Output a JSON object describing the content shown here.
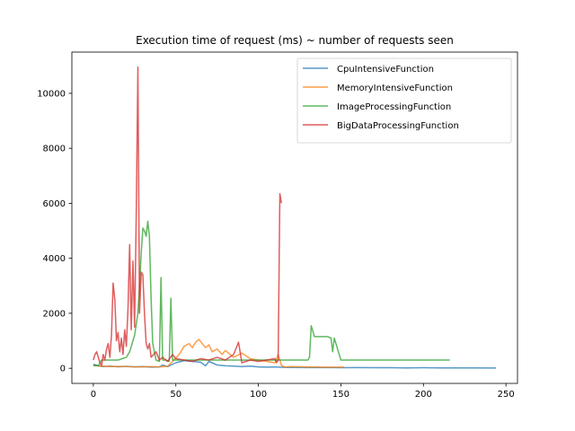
{
  "chart_data": {
    "type": "line",
    "title": "Execution time of request (ms) ~ number of requests seen",
    "xlabel": "",
    "ylabel": "",
    "xlim": [
      -13,
      257
    ],
    "ylim": [
      -550,
      11500
    ],
    "xticks": [
      0,
      50,
      100,
      150,
      200,
      250
    ],
    "yticks": [
      0,
      2000,
      4000,
      6000,
      8000,
      10000
    ],
    "grid": false,
    "legend_position": "top-right",
    "series": [
      {
        "name": "CpuIntensiveFunction",
        "color": "#1f77b4",
        "x": [
          0,
          3,
          6,
          10,
          15,
          20,
          25,
          30,
          35,
          40,
          42,
          45,
          50,
          55,
          60,
          65,
          68,
          70,
          75,
          80,
          85,
          90,
          95,
          100,
          105,
          110,
          115,
          120,
          130,
          140,
          150,
          160,
          170,
          180,
          190,
          200,
          210,
          220,
          230,
          244
        ],
        "values": [
          150,
          90,
          60,
          80,
          55,
          70,
          50,
          60,
          40,
          50,
          120,
          60,
          200,
          280,
          250,
          220,
          90,
          250,
          120,
          90,
          80,
          60,
          80,
          50,
          40,
          50,
          35,
          30,
          25,
          30,
          20,
          25,
          20,
          20,
          15,
          20,
          15,
          15,
          15,
          10
        ]
      },
      {
        "name": "MemoryIntensiveFunction",
        "color": "#ff7f0e",
        "x": [
          0,
          5,
          10,
          15,
          20,
          25,
          30,
          35,
          40,
          45,
          48,
          52,
          55,
          58,
          60,
          62,
          64,
          66,
          68,
          70,
          72,
          75,
          78,
          80,
          85,
          90,
          95,
          100,
          105,
          110,
          112,
          114,
          116,
          120,
          130,
          140,
          152
        ],
        "values": [
          100,
          80,
          60,
          70,
          60,
          55,
          50,
          60,
          50,
          70,
          250,
          500,
          800,
          900,
          750,
          950,
          1050,
          900,
          750,
          850,
          600,
          700,
          500,
          650,
          400,
          550,
          350,
          300,
          250,
          200,
          500,
          100,
          50,
          60,
          50,
          40,
          40
        ]
      },
      {
        "name": "ImageProcessingFunction",
        "color": "#2ca02c",
        "x": [
          0,
          3,
          5,
          10,
          15,
          20,
          22,
          25,
          27,
          28,
          29,
          30,
          31,
          32,
          33,
          34,
          35,
          36,
          38,
          40,
          41,
          42,
          44,
          46,
          47,
          48,
          50,
          55,
          60,
          70,
          80,
          90,
          100,
          110,
          115,
          120,
          125,
          130,
          131,
          132,
          134,
          136,
          138,
          140,
          142,
          144,
          145,
          146,
          150,
          160,
          180,
          200,
          216
        ],
        "values": [
          100,
          90,
          300,
          300,
          300,
          400,
          600,
          1200,
          2000,
          3000,
          4200,
          5100,
          5000,
          4800,
          5350,
          4800,
          2500,
          900,
          300,
          250,
          3300,
          300,
          300,
          250,
          2550,
          300,
          300,
          300,
          300,
          300,
          300,
          300,
          300,
          300,
          300,
          300,
          300,
          300,
          400,
          1550,
          1150,
          1150,
          1150,
          1150,
          1150,
          1100,
          600,
          1100,
          300,
          300,
          300,
          300,
          300
        ]
      },
      {
        "name": "BigDataProcessingFunction",
        "color": "#d62728",
        "x": [
          0,
          1,
          2,
          3,
          4,
          5,
          6,
          7,
          8,
          9,
          10,
          11,
          12,
          13,
          14,
          15,
          16,
          17,
          18,
          19,
          20,
          21,
          22,
          23,
          24,
          25,
          26,
          27,
          28,
          29,
          30,
          31,
          32,
          33,
          34,
          35,
          38,
          40,
          42,
          45,
          48,
          50,
          55,
          60,
          65,
          70,
          75,
          80,
          85,
          88,
          90,
          95,
          100,
          105,
          110,
          111,
          112,
          113,
          114
        ],
        "values": [
          300,
          500,
          600,
          400,
          200,
          100,
          500,
          300,
          700,
          900,
          400,
          1200,
          3100,
          2500,
          1000,
          1300,
          600,
          1100,
          500,
          1400,
          800,
          2200,
          4500,
          1400,
          3900,
          1500,
          5500,
          10950,
          2000,
          3500,
          3400,
          2000,
          900,
          700,
          900,
          400,
          600,
          300,
          400,
          250,
          500,
          350,
          300,
          250,
          350,
          300,
          400,
          300,
          500,
          950,
          200,
          300,
          250,
          300,
          350,
          200,
          300,
          6350,
          6000
        ]
      }
    ]
  }
}
